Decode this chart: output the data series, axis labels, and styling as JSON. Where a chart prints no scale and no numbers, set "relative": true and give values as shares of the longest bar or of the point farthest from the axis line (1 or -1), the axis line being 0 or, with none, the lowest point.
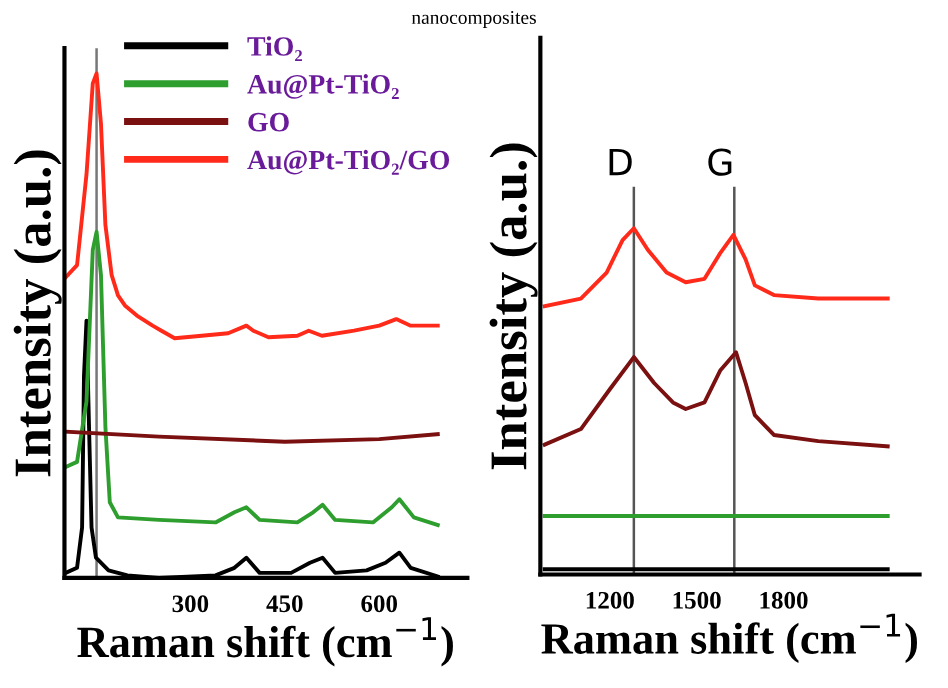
{
  "chart_data": [
    {
      "type": "line",
      "annotations": [
        "nanocomposites"
      ],
      "xlabel": "Raman shift (cm$^{−1}$)",
      "ylabel": "Intensity (a.u.)",
      "relative": true,
      "tick_labels": "x",
      "legend": "top right",
      "xlim": [
        100,
        740
      ],
      "xticks": [
        300,
        450,
        600
      ],
      "ref_lines": [
        {
          "axis": "x",
          "value": 151,
          "color": "#777777"
        }
      ],
      "series": [
        {
          "name": "TiO₂",
          "color": "#000000",
          "x": [
            102,
            120,
            128,
            131,
            135,
            139,
            143,
            150,
            170,
            200,
            250,
            340,
            370,
            389,
            410,
            460,
            490,
            510,
            530,
            580,
            610,
            632,
            650,
            693
          ],
          "values": [
            0.01,
            0.02,
            0.1,
            0.4,
            0.51,
            0.3,
            0.1,
            0.04,
            0.015,
            0.005,
            0.0,
            0.005,
            0.02,
            0.04,
            0.01,
            0.01,
            0.03,
            0.04,
            0.01,
            0.015,
            0.03,
            0.05,
            0.02,
            0.003
          ]
        },
        {
          "name": "Au@Pt-TiO₂",
          "color": "#2e9e2e",
          "x": [
            102,
            120,
            135,
            145,
            151,
            158,
            165,
            172,
            185,
            250,
            340,
            370,
            389,
            410,
            470,
            495,
            510,
            530,
            590,
            620,
            632,
            655,
            693
          ],
          "values": [
            0.22,
            0.23,
            0.35,
            0.65,
            0.686,
            0.6,
            0.3,
            0.15,
            0.12,
            0.115,
            0.11,
            0.13,
            0.14,
            0.115,
            0.11,
            0.13,
            0.145,
            0.115,
            0.11,
            0.14,
            0.156,
            0.12,
            0.105
          ]
        },
        {
          "name": "GO",
          "color": "#7b1010",
          "x": [
            102,
            250,
            450,
            600,
            693
          ],
          "values": [
            0.29,
            0.28,
            0.27,
            0.275,
            0.285
          ]
        },
        {
          "name": "Au@Pt-TiO₂/GO",
          "color": "#ff2a1a",
          "x": [
            102,
            120,
            135,
            145,
            151,
            158,
            165,
            175,
            185,
            196,
            215,
            240,
            254,
            275,
            318,
            360,
            389,
            400,
            424,
            470,
            488,
            509,
            560,
            600,
            627,
            650,
            693
          ],
          "values": [
            0.596,
            0.62,
            0.8,
            0.98,
            1.0,
            0.9,
            0.7,
            0.6,
            0.56,
            0.54,
            0.52,
            0.5,
            0.49,
            0.475,
            0.48,
            0.485,
            0.5,
            0.49,
            0.477,
            0.48,
            0.49,
            0.48,
            0.49,
            0.5,
            0.513,
            0.5,
            0.5
          ]
        }
      ]
    },
    {
      "type": "line",
      "xlabel": "Raman shift (cm$^{−1}$)",
      "ylabel": "Intensity (a.u.)",
      "relative": true,
      "tick_labels": "x",
      "xlim": [
        960,
        2270
      ],
      "xticks": [
        1200,
        1500,
        1800
      ],
      "ref_lines": [
        {
          "axis": "x",
          "value": 1283,
          "label": "D",
          "color": "#555555"
        },
        {
          "axis": "x",
          "value": 1630,
          "label": "G",
          "color": "#555555"
        }
      ],
      "series": [
        {
          "color": "#000000",
          "x": [
            975,
            2160
          ],
          "values": [
            0.015,
            0.015
          ]
        },
        {
          "color": "#2e9e2e",
          "x": [
            975,
            2160
          ],
          "values": [
            0.169,
            0.169
          ]
        },
        {
          "color": "#7b1010",
          "x": [
            975,
            1100,
            1200,
            1283,
            1353,
            1418,
            1462,
            1527,
            1582,
            1636,
            1669,
            1701,
            1767,
            1920,
            2160
          ],
          "values": [
            0.375,
            0.42,
            0.535,
            0.628,
            0.553,
            0.497,
            0.478,
            0.497,
            0.59,
            0.642,
            0.553,
            0.46,
            0.403,
            0.385,
            0.37
          ]
        },
        {
          "color": "#ff2a1a",
          "x": [
            975,
            1100,
            1189,
            1244,
            1283,
            1331,
            1396,
            1462,
            1527,
            1582,
            1627,
            1669,
            1701,
            1767,
            1920,
            2160
          ],
          "values": [
            0.775,
            0.797,
            0.872,
            0.966,
            1.0,
            0.938,
            0.872,
            0.844,
            0.854,
            0.929,
            0.981,
            0.91,
            0.835,
            0.807,
            0.797,
            0.797
          ]
        }
      ]
    }
  ]
}
